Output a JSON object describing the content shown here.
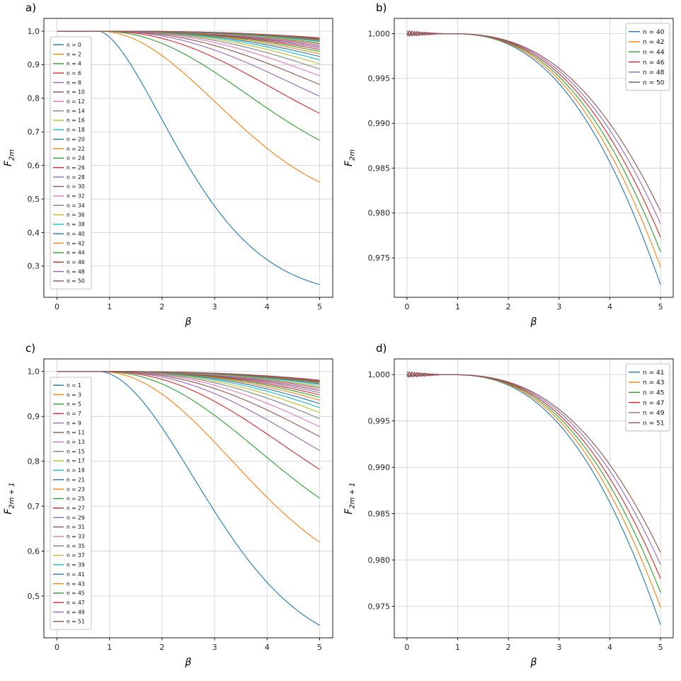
{
  "figure": {
    "background": "#ffffff"
  },
  "palette": [
    "#1f77b4",
    "#ff7f0e",
    "#2ca02c",
    "#d62728",
    "#9467bd",
    "#8c564b",
    "#e377c2",
    "#7f7f7f",
    "#bcbd22",
    "#17becf"
  ],
  "chart_data": [
    {
      "id": "a",
      "label": "a)",
      "type": "line",
      "xlabel": "β",
      "ylabel": "F",
      "ylabel_sub": "2m",
      "xlim": [
        -0.25,
        5.25
      ],
      "ylim": [
        0.207,
        1.038
      ],
      "xticks": [
        0,
        1,
        2,
        3,
        4,
        5
      ],
      "xtick_labels": [
        "0",
        "1",
        "2",
        "3",
        "4",
        "5"
      ],
      "yticks": [
        0.3,
        0.4,
        0.5,
        0.6,
        0.7,
        0.8,
        0.9,
        1.0
      ],
      "ytick_labels": [
        "0,3",
        "0,4",
        "0,5",
        "0,6",
        "0,7",
        "0,8",
        "0,9",
        "1,0"
      ],
      "grid": true,
      "legend": "left",
      "noise": false,
      "curve_note": "F stays at 1.0 until beta~0.9 then decays smoothly to y_end at beta=5",
      "series": [
        {
          "label": "n = 0",
          "y_end": 0.245
        },
        {
          "label": "n = 2",
          "y_end": 0.55
        },
        {
          "label": "n = 4",
          "y_end": 0.675
        },
        {
          "label": "n = 6",
          "y_end": 0.755
        },
        {
          "label": "n = 8",
          "y_end": 0.806
        },
        {
          "label": "n = 10",
          "y_end": 0.841
        },
        {
          "label": "n = 12",
          "y_end": 0.867
        },
        {
          "label": "n = 14",
          "y_end": 0.887
        },
        {
          "label": "n = 16",
          "y_end": 0.9025
        },
        {
          "label": "n = 18",
          "y_end": 0.9145
        },
        {
          "label": "n = 20",
          "y_end": 0.9245
        },
        {
          "label": "n = 22",
          "y_end": 0.9325
        },
        {
          "label": "n = 24",
          "y_end": 0.9395
        },
        {
          "label": "n = 26",
          "y_end": 0.9455
        },
        {
          "label": "n = 28",
          "y_end": 0.9505
        },
        {
          "label": "n = 30",
          "y_end": 0.955
        },
        {
          "label": "n = 32",
          "y_end": 0.959
        },
        {
          "label": "n = 34",
          "y_end": 0.9625
        },
        {
          "label": "n = 36",
          "y_end": 0.9655
        },
        {
          "label": "n = 38",
          "y_end": 0.969
        },
        {
          "label": "n = 40",
          "y_end": 0.972
        },
        {
          "label": "n = 42",
          "y_end": 0.974
        },
        {
          "label": "n = 44",
          "y_end": 0.9757
        },
        {
          "label": "n = 46",
          "y_end": 0.9773
        },
        {
          "label": "n = 48",
          "y_end": 0.9788
        },
        {
          "label": "n = 50",
          "y_end": 0.9802
        }
      ]
    },
    {
      "id": "b",
      "label": "b)",
      "type": "line",
      "xlabel": "β",
      "ylabel": "F",
      "ylabel_sub": "2m",
      "xlim": [
        -0.25,
        5.25
      ],
      "ylim": [
        0.9706,
        1.0017
      ],
      "xticks": [
        0,
        1,
        2,
        3,
        4,
        5
      ],
      "xtick_labels": [
        "0",
        "1",
        "2",
        "3",
        "4",
        "5"
      ],
      "yticks": [
        0.975,
        0.98,
        0.985,
        0.99,
        0.995,
        1.0
      ],
      "ytick_labels": [
        "0,975",
        "0,980",
        "0,985",
        "0,990",
        "0,995",
        "1,000"
      ],
      "grid": true,
      "legend": "upper-right",
      "noise": true,
      "series": [
        {
          "label": "n = 40",
          "y_end": 0.972
        },
        {
          "label": "n = 42",
          "y_end": 0.974
        },
        {
          "label": "n = 44",
          "y_end": 0.9757
        },
        {
          "label": "n = 46",
          "y_end": 0.9773
        },
        {
          "label": "n = 48",
          "y_end": 0.9788
        },
        {
          "label": "n = 50",
          "y_end": 0.9802
        }
      ]
    },
    {
      "id": "c",
      "label": "c)",
      "type": "line",
      "xlabel": "β",
      "ylabel": "F",
      "ylabel_sub": "2m + 1",
      "xlim": [
        -0.25,
        5.25
      ],
      "ylim": [
        0.407,
        1.028
      ],
      "xticks": [
        0,
        1,
        2,
        3,
        4,
        5
      ],
      "xtick_labels": [
        "0",
        "1",
        "2",
        "3",
        "4",
        "5"
      ],
      "yticks": [
        0.5,
        0.6,
        0.7,
        0.8,
        0.9,
        1.0
      ],
      "ytick_labels": [
        "0,5",
        "0,6",
        "0,7",
        "0,8",
        "0,9",
        "1,0"
      ],
      "grid": true,
      "legend": "left",
      "noise": false,
      "series": [
        {
          "label": "n = 1",
          "y_end": 0.435
        },
        {
          "label": "n = 3",
          "y_end": 0.62
        },
        {
          "label": "n = 5",
          "y_end": 0.718
        },
        {
          "label": "n = 7",
          "y_end": 0.782
        },
        {
          "label": "n = 9",
          "y_end": 0.824
        },
        {
          "label": "n = 11",
          "y_end": 0.855
        },
        {
          "label": "n = 13",
          "y_end": 0.877
        },
        {
          "label": "n = 15",
          "y_end": 0.895
        },
        {
          "label": "n = 17",
          "y_end": 0.9085
        },
        {
          "label": "n = 19",
          "y_end": 0.9195
        },
        {
          "label": "n = 21",
          "y_end": 0.9285
        },
        {
          "label": "n = 23",
          "y_end": 0.936
        },
        {
          "label": "n = 25",
          "y_end": 0.9425
        },
        {
          "label": "n = 27",
          "y_end": 0.948
        },
        {
          "label": "n = 29",
          "y_end": 0.953
        },
        {
          "label": "n = 31",
          "y_end": 0.9575
        },
        {
          "label": "n = 33",
          "y_end": 0.961
        },
        {
          "label": "n = 35",
          "y_end": 0.964
        },
        {
          "label": "n = 37",
          "y_end": 0.967
        },
        {
          "label": "n = 39",
          "y_end": 0.9705
        },
        {
          "label": "n = 41",
          "y_end": 0.973
        },
        {
          "label": "n = 43",
          "y_end": 0.975
        },
        {
          "label": "n = 45",
          "y_end": 0.9765
        },
        {
          "label": "n = 47",
          "y_end": 0.978
        },
        {
          "label": "n = 49",
          "y_end": 0.9795
        },
        {
          "label": "n = 51",
          "y_end": 0.9808
        }
      ]
    },
    {
      "id": "d",
      "label": "d)",
      "type": "line",
      "xlabel": "β",
      "ylabel": "F",
      "ylabel_sub": "2m + 1",
      "xlim": [
        -0.25,
        5.25
      ],
      "ylim": [
        0.9716,
        1.0017
      ],
      "xticks": [
        0,
        1,
        2,
        3,
        4,
        5
      ],
      "xtick_labels": [
        "0",
        "1",
        "2",
        "3",
        "4",
        "5"
      ],
      "yticks": [
        0.975,
        0.98,
        0.985,
        0.99,
        0.995,
        1.0
      ],
      "ytick_labels": [
        "0,975",
        "0,980",
        "0,985",
        "0,990",
        "0,995",
        "1,000"
      ],
      "grid": true,
      "legend": "upper-right",
      "noise": true,
      "series": [
        {
          "label": "n = 41",
          "y_end": 0.973
        },
        {
          "label": "n = 43",
          "y_end": 0.9749
        },
        {
          "label": "n = 45",
          "y_end": 0.9765
        },
        {
          "label": "n = 47",
          "y_end": 0.978
        },
        {
          "label": "n = 49",
          "y_end": 0.9795
        },
        {
          "label": "n = 51",
          "y_end": 0.9808
        }
      ]
    }
  ]
}
